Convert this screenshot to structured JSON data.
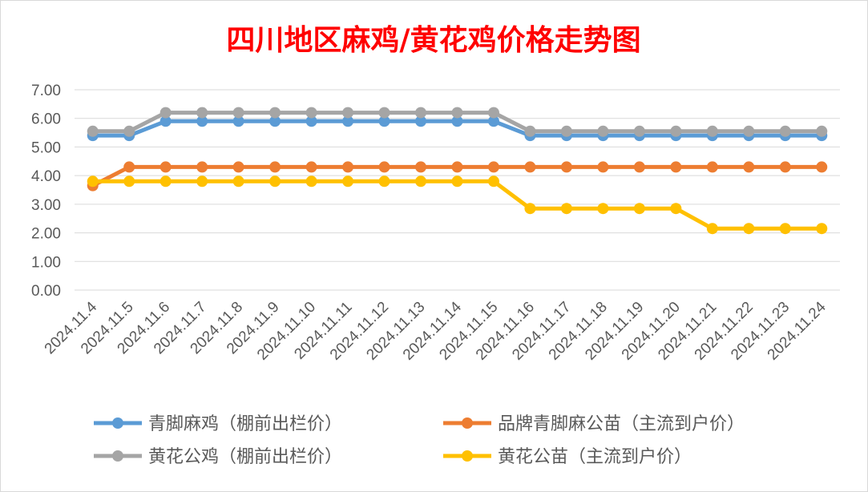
{
  "chart_data": {
    "type": "line",
    "title": "四川地区麻鸡/黄花鸡价格走势图",
    "title_color": "#ff0000",
    "categories": [
      "2024.11.4",
      "2024.11.5",
      "2024.11.6",
      "2024.11.7",
      "2024.11.8",
      "2024.11.9",
      "2024.11.10",
      "2024.11.11",
      "2024.11.12",
      "2024.11.13",
      "2024.11.14",
      "2024.11.15",
      "2024.11.16",
      "2024.11.17",
      "2024.11.18",
      "2024.11.19",
      "2024.11.20",
      "2024.11.21",
      "2024.11.22",
      "2024.11.23",
      "2024.11.24"
    ],
    "ylim": [
      0,
      7
    ],
    "yticks": [
      "0.00",
      "1.00",
      "2.00",
      "3.00",
      "4.00",
      "5.00",
      "6.00",
      "7.00"
    ],
    "grid": true,
    "legend_position": "bottom",
    "series": [
      {
        "name": "青脚麻鸡（棚前出栏价）",
        "color": "#5b9bd5",
        "values": [
          5.4,
          5.4,
          5.9,
          5.9,
          5.9,
          5.9,
          5.9,
          5.9,
          5.9,
          5.9,
          5.9,
          5.9,
          5.4,
          5.4,
          5.4,
          5.4,
          5.4,
          5.4,
          5.4,
          5.4,
          5.4
        ]
      },
      {
        "name": "品牌青脚麻公苗（主流到户价）",
        "color": "#ed7d31",
        "values": [
          3.65,
          4.3,
          4.3,
          4.3,
          4.3,
          4.3,
          4.3,
          4.3,
          4.3,
          4.3,
          4.3,
          4.3,
          4.3,
          4.3,
          4.3,
          4.3,
          4.3,
          4.3,
          4.3,
          4.3,
          4.3
        ]
      },
      {
        "name": "黄花公鸡（棚前出栏价）",
        "color": "#a5a5a5",
        "values": [
          5.55,
          5.55,
          6.2,
          6.2,
          6.2,
          6.2,
          6.2,
          6.2,
          6.2,
          6.2,
          6.2,
          6.2,
          5.55,
          5.55,
          5.55,
          5.55,
          5.55,
          5.55,
          5.55,
          5.55,
          5.55
        ]
      },
      {
        "name": "黄花公苗（主流到户价）",
        "color": "#ffc000",
        "values": [
          3.8,
          3.8,
          3.8,
          3.8,
          3.8,
          3.8,
          3.8,
          3.8,
          3.8,
          3.8,
          3.8,
          3.8,
          2.85,
          2.85,
          2.85,
          2.85,
          2.85,
          2.15,
          2.15,
          2.15,
          2.15
        ]
      }
    ]
  }
}
